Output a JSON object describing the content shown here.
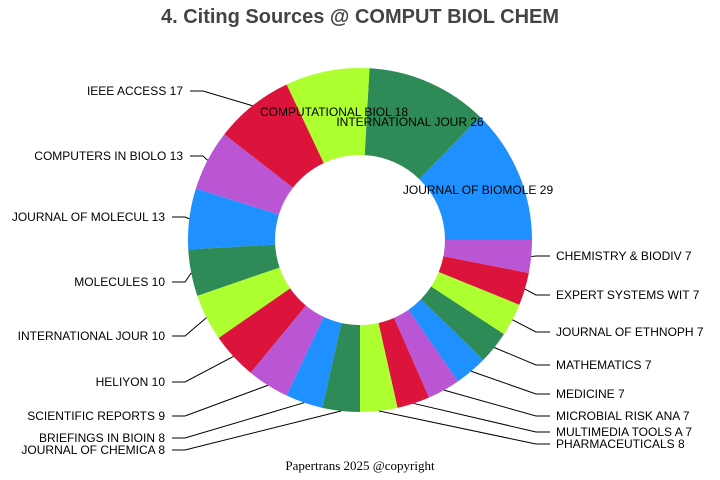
{
  "chart_data": {
    "type": "pie",
    "variant": "donut",
    "title": "4. Citing Sources @ COMPUT BIOL CHEM",
    "footer": "Papertrans 2025 @copyright",
    "direction": "counterclockwise from 3 o'clock",
    "slices": [
      {
        "label": "JOURNAL OF BIOMOLE",
        "value": 29,
        "color": "#1E90FF"
      },
      {
        "label": "INTERNATIONAL JOUR",
        "value": 26,
        "color": "#2E8B57"
      },
      {
        "label": "COMPUTATIONAL BIOL",
        "value": 18,
        "color": "#ADFF2F"
      },
      {
        "label": "IEEE ACCESS",
        "value": 17,
        "color": "#DC143C"
      },
      {
        "label": "COMPUTERS IN BIOLO",
        "value": 13,
        "color": "#BA55D3"
      },
      {
        "label": "JOURNAL OF MOLECUL",
        "value": 13,
        "color": "#1E90FF"
      },
      {
        "label": "MOLECULES",
        "value": 10,
        "color": "#2E8B57"
      },
      {
        "label": "INTERNATIONAL JOUR",
        "value": 10,
        "color": "#ADFF2F"
      },
      {
        "label": "HELIYON",
        "value": 10,
        "color": "#DC143C"
      },
      {
        "label": "SCIENTIFIC REPORTS",
        "value": 9,
        "color": "#BA55D3"
      },
      {
        "label": "BRIEFINGS IN BIOIN",
        "value": 8,
        "color": "#1E90FF"
      },
      {
        "label": "JOURNAL OF CHEMICA",
        "value": 8,
        "color": "#2E8B57"
      },
      {
        "label": "PHARMACEUTICALS",
        "value": 8,
        "color": "#ADFF2F"
      },
      {
        "label": "MULTIMEDIA TOOLS A",
        "value": 7,
        "color": "#DC143C"
      },
      {
        "label": "MICROBIAL RISK ANA",
        "value": 7,
        "color": "#BA55D3"
      },
      {
        "label": "MEDICINE",
        "value": 7,
        "color": "#1E90FF"
      },
      {
        "label": "MATHEMATICS",
        "value": 7,
        "color": "#2E8B57"
      },
      {
        "label": "JOURNAL OF ETHNOPH",
        "value": 7,
        "color": "#ADFF2F"
      },
      {
        "label": "EXPERT SYSTEMS WIT",
        "value": 7,
        "color": "#DC143C"
      },
      {
        "label": "CHEMISTRY & BIODIV",
        "value": 7,
        "color": "#BA55D3"
      }
    ]
  }
}
